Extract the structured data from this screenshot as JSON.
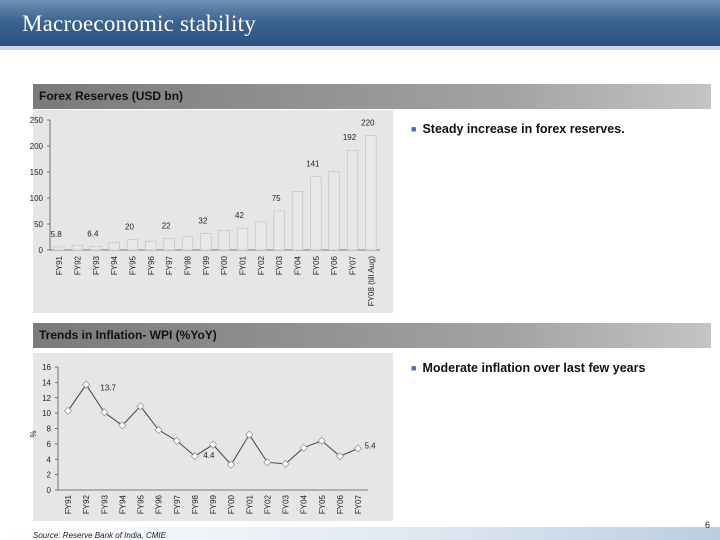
{
  "slide": {
    "title": "Macroeconomic stability",
    "page_number": "6",
    "source": "Source: Reserve Bank of India, CMIE"
  },
  "bullets": {
    "forex": "Steady increase in forex reserves.",
    "inflation": "Moderate inflation over last few years"
  },
  "colors": {
    "bar": "#e8e8e8",
    "bar_edge": "#b5b5b5",
    "line": "#444444",
    "header": "#2f5785"
  },
  "chart_data": [
    {
      "type": "bar",
      "title": "Forex Reserves (USD bn)",
      "categories": [
        "FY91",
        "FY92",
        "FY93",
        "FY94",
        "FY95",
        "FY96",
        "FY97",
        "FY98",
        "FY99",
        "FY00",
        "FY01",
        "FY02",
        "FY03",
        "FY04",
        "FY05",
        "FY06",
        "FY07",
        "FY08 (till Aug)"
      ],
      "values": [
        5.8,
        9.2,
        6.4,
        15,
        20,
        17,
        22,
        26,
        32,
        38,
        42,
        54,
        75,
        113,
        141,
        151,
        192,
        220
      ],
      "data_labels": {
        "0": "5.8",
        "2": "6.4",
        "4": "20",
        "6": "22",
        "8": "32",
        "10": "42",
        "12": "75",
        "14": "141",
        "16": "192",
        "17": "220"
      },
      "y_ticks": [
        0,
        50,
        100,
        150,
        200,
        250
      ],
      "ylim": [
        0,
        250
      ],
      "xlabel": "",
      "ylabel": ""
    },
    {
      "type": "line",
      "title": "Trends in Inflation- WPI (%YoY)",
      "categories": [
        "FY91",
        "FY92",
        "FY93",
        "FY94",
        "FY95",
        "FY96",
        "FY97",
        "FY98",
        "FY99",
        "FY00",
        "FY01",
        "FY02",
        "FY03",
        "FY04",
        "FY05",
        "FY06",
        "FY07"
      ],
      "values": [
        10.3,
        13.7,
        10.1,
        8.4,
        10.9,
        7.8,
        6.4,
        4.4,
        5.9,
        3.3,
        7.2,
        3.6,
        3.4,
        5.5,
        6.4,
        4.4,
        5.4
      ],
      "data_labels": {
        "1": "13.7",
        "7": "4.4",
        "16": "5.4"
      },
      "y_ticks": [
        0,
        2,
        4,
        6,
        8,
        10,
        12,
        14,
        16
      ],
      "ylim": [
        0,
        16
      ],
      "xlabel": "",
      "ylabel": "%"
    }
  ]
}
